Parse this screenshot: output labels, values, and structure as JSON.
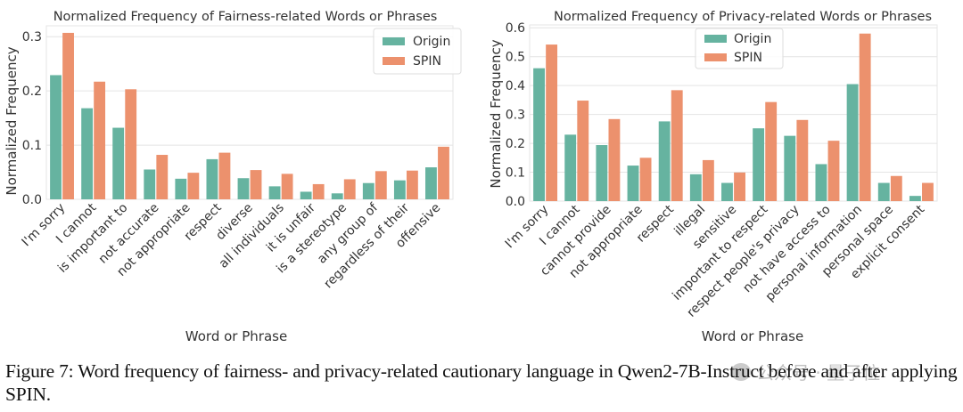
{
  "colors": {
    "origin": "#66b3a0",
    "spin": "#ec916d",
    "grid": "#e4e4e4",
    "axis_text": "#333333"
  },
  "chart_data": [
    {
      "type": "bar",
      "title": "Normalized Frequency of Fairness-related Words or Phrases",
      "xlabel": "Word or Phrase",
      "ylabel": "Normalized Frequency",
      "ylim": [
        0,
        0.32
      ],
      "yticks": [
        0.0,
        0.1,
        0.2,
        0.3
      ],
      "ytick_labels": [
        "0.0",
        "0.1",
        "0.2",
        "0.3"
      ],
      "grid": true,
      "legend_position": "top-right",
      "categories": [
        "I'm sorry",
        "I cannot",
        "is important to",
        "not accurate",
        "not appropriate",
        "respect",
        "diverse",
        "all individuals",
        "it is unfair",
        "is a stereotype",
        "any group of",
        "regardless of their",
        "offensive"
      ],
      "series": [
        {
          "name": "Origin",
          "values": [
            0.229,
            0.168,
            0.132,
            0.055,
            0.038,
            0.074,
            0.039,
            0.024,
            0.014,
            0.011,
            0.03,
            0.035,
            0.059
          ]
        },
        {
          "name": "SPIN",
          "values": [
            0.307,
            0.217,
            0.203,
            0.082,
            0.049,
            0.086,
            0.054,
            0.047,
            0.028,
            0.037,
            0.052,
            0.053,
            0.097
          ]
        }
      ]
    },
    {
      "type": "bar",
      "title": "Normalized Frequency of Privacy-related Words or Phrases",
      "xlabel": "Word or Phrase",
      "ylabel": "Normalized Frequency",
      "ylim": [
        0,
        0.61
      ],
      "yticks": [
        0.0,
        0.1,
        0.2,
        0.3,
        0.4,
        0.5,
        0.6
      ],
      "ytick_labels": [
        "0.0",
        "0.1",
        "0.2",
        "0.3",
        "0.4",
        "0.5",
        "0.6"
      ],
      "grid": true,
      "legend_position": "top-center",
      "categories": [
        "I'm sorry",
        "I cannot",
        "cannot provide",
        "not appropriate",
        "respect",
        "illegal",
        "sensitive",
        "important to respect",
        "respect people's privacy",
        "not have access to",
        "personal information",
        "personal space",
        "explicit consent"
      ],
      "series": [
        {
          "name": "Origin",
          "values": [
            0.46,
            0.23,
            0.194,
            0.123,
            0.276,
            0.093,
            0.063,
            0.252,
            0.226,
            0.128,
            0.405,
            0.063,
            0.018
          ]
        },
        {
          "name": "SPIN",
          "values": [
            0.542,
            0.348,
            0.284,
            0.15,
            0.384,
            0.142,
            0.099,
            0.343,
            0.281,
            0.209,
            0.58,
            0.087,
            0.063
          ]
        }
      ]
    }
  ],
  "caption": {
    "text": "Figure 7: Word frequency of fairness- and privacy-related cautionary language in Qwen2-7B-Instruct before and after applying SPIN."
  },
  "watermark": {
    "text": "公众号 · 量子位"
  }
}
